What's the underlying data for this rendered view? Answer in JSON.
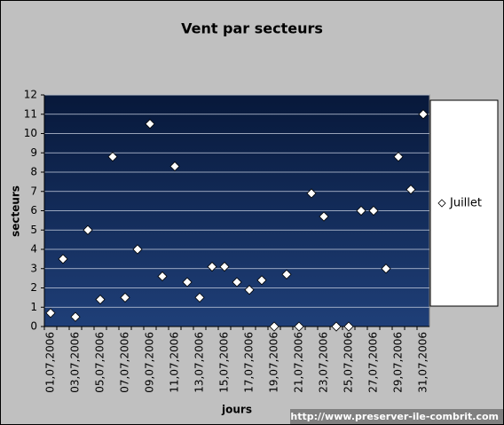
{
  "chart_data": {
    "type": "scatter",
    "title": "Vent par secteurs",
    "x_label": "jours",
    "y_label": "secteurs",
    "source": "http://www.preserver-ile-combrit.com",
    "categories": [
      "01,07,2006",
      null,
      "03,07,2006",
      null,
      "05,07,2006",
      null,
      "07,07,2006",
      null,
      "09,07,2006",
      null,
      "11,07,2006",
      null,
      "13,07,2006",
      null,
      "15,07,2006",
      null,
      "17,07,2006",
      null,
      "19,07,2006",
      null,
      "21,07,2006",
      null,
      "23,07,2006",
      null,
      "25,07,2006",
      null,
      "27,07,2006",
      null,
      "29,07,2006",
      null,
      "31,07,2006"
    ],
    "series": [
      {
        "name": "Juillet",
        "color": "#ffffff",
        "values": [
          0.7,
          3.5,
          0.5,
          5.0,
          1.4,
          8.8,
          1.5,
          4.0,
          10.5,
          2.6,
          8.3,
          2.3,
          1.5,
          3.1,
          3.1,
          2.3,
          1.9,
          2.4,
          0,
          2.7,
          0,
          6.9,
          5.7,
          0,
          0,
          6.0,
          6.0,
          3.0,
          8.8,
          7.1,
          11.0
        ]
      }
    ],
    "ylim": [
      0,
      12
    ],
    "yticks": [
      0,
      1,
      2,
      3,
      4,
      5,
      6,
      7,
      8,
      9,
      10,
      11,
      12
    ],
    "grid": true,
    "legend": "right"
  }
}
